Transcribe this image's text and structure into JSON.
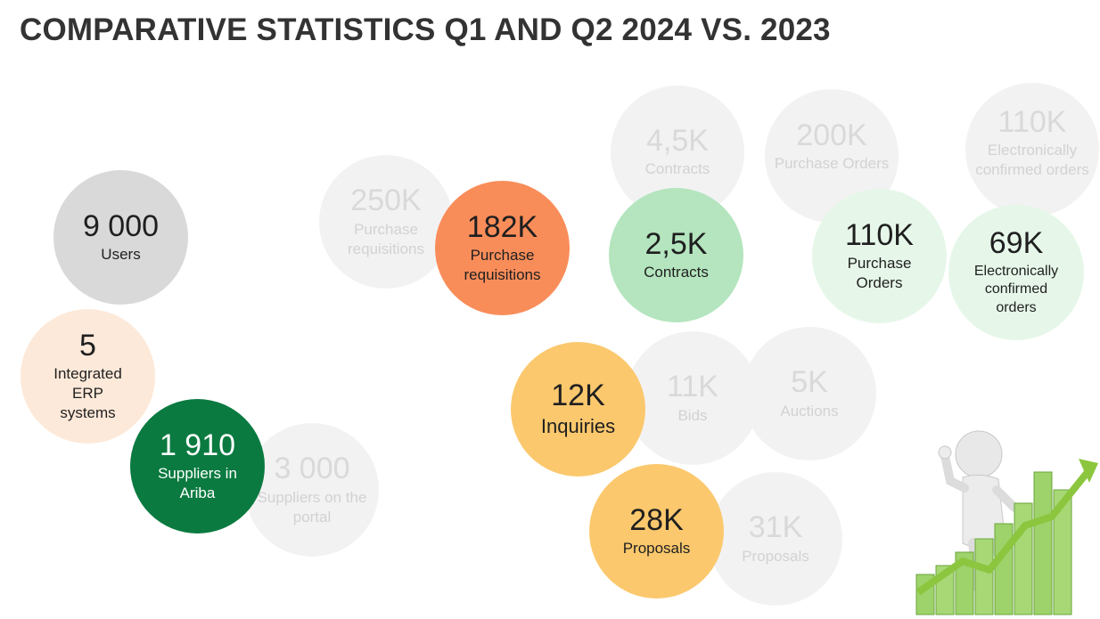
{
  "title": "COMPARATIVE STATISTICS Q1 AND Q2 2024 VS. 2023",
  "colors": {
    "ghost": "#f2f2f2",
    "users": "#d9d9d9",
    "erp": "#fde9d9",
    "ariba": "#0a7a40",
    "requisitions": "#f98d5a",
    "contracts": "#b4e5be",
    "orders": "#e6f7e9",
    "inquiries": "#fbc86d",
    "proposals": "#fbc86d"
  },
  "metrics": {
    "users": {
      "value": "9 000",
      "label": "Users"
    },
    "erp": {
      "value": "5",
      "label": "Integrated ERP systems"
    },
    "ariba": {
      "value": "1 910",
      "label": "Suppliers in Ariba"
    },
    "portal_prev": {
      "value": "3 000",
      "label": "Suppliers on the portal"
    },
    "req_prev": {
      "value": "250K",
      "label": "Purchase requisitions"
    },
    "req": {
      "value": "182K",
      "label": "Purchase requisitions"
    },
    "contracts_prev": {
      "value": "4,5K",
      "label": "Contracts"
    },
    "contracts": {
      "value": "2,5K",
      "label": "Contracts"
    },
    "po_prev": {
      "value": "200K",
      "label": "Purchase Orders"
    },
    "po": {
      "value": "110K",
      "label": "Purchase Orders"
    },
    "ec_prev": {
      "value": "110K",
      "label": "Electronically confirmed orders"
    },
    "ec": {
      "value": "69K",
      "label": "Electronically confirmed orders"
    },
    "inquiries": {
      "value": "12K",
      "label": "Inquiries"
    },
    "bids_prev": {
      "value": "11K",
      "label": "Bids"
    },
    "auctions_prev": {
      "value": "5K",
      "label": "Auctions"
    },
    "proposals": {
      "value": "28K",
      "label": "Proposals"
    },
    "proposals_prev": {
      "value": "31K",
      "label": "Proposals"
    }
  },
  "illustration": "figure-with-growth-chart"
}
